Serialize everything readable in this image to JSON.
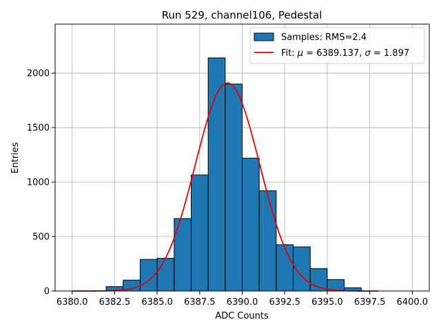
{
  "chart_data": {
    "type": "bar",
    "title": "Run 529, channel106, Pedestal",
    "xlabel": "ADC Counts",
    "ylabel": "Entries",
    "xlim": [
      6379.0,
      6401.0
    ],
    "ylim": [
      0,
      2450
    ],
    "xticks": [
      6380.0,
      6382.5,
      6385.0,
      6387.5,
      6390.0,
      6392.5,
      6395.0,
      6397.5,
      6400.0
    ],
    "xtick_labels": [
      "6380.0",
      "6382.5",
      "6385.0",
      "6387.5",
      "6390.0",
      "6392.5",
      "6395.0",
      "6397.5",
      "6400.0"
    ],
    "yticks": [
      0,
      500,
      1000,
      1500,
      2000
    ],
    "ytick_labels": [
      "0",
      "500",
      "1000",
      "1500",
      "2000"
    ],
    "grid": true,
    "legend_position": "top-right",
    "bar_color": "#1f77b4",
    "bar_edge_color": "#000000",
    "fit_color": "#e00000",
    "bins": [
      {
        "start": 6380,
        "end": 6381,
        "count": 0
      },
      {
        "start": 6381,
        "end": 6382,
        "count": 0
      },
      {
        "start": 6382,
        "end": 6383,
        "count": 40
      },
      {
        "start": 6383,
        "end": 6384,
        "count": 100
      },
      {
        "start": 6384,
        "end": 6385,
        "count": 290
      },
      {
        "start": 6385,
        "end": 6386,
        "count": 300
      },
      {
        "start": 6386,
        "end": 6387,
        "count": 665
      },
      {
        "start": 6387,
        "end": 6388,
        "count": 1065
      },
      {
        "start": 6388,
        "end": 6389,
        "count": 2140
      },
      {
        "start": 6389,
        "end": 6390,
        "count": 1900
      },
      {
        "start": 6390,
        "end": 6391,
        "count": 1220
      },
      {
        "start": 6391,
        "end": 6392,
        "count": 920
      },
      {
        "start": 6392,
        "end": 6393,
        "count": 425
      },
      {
        "start": 6393,
        "end": 6394,
        "count": 405
      },
      {
        "start": 6394,
        "end": 6395,
        "count": 205
      },
      {
        "start": 6395,
        "end": 6396,
        "count": 105
      },
      {
        "start": 6396,
        "end": 6397,
        "count": 30
      },
      {
        "start": 6397,
        "end": 6398,
        "count": 0
      },
      {
        "start": 6398,
        "end": 6399,
        "count": 0
      },
      {
        "start": 6399,
        "end": 6400,
        "count": 0
      }
    ],
    "fit": {
      "mu": 6389.137,
      "sigma": 1.897,
      "amplitude": 1910,
      "x_range": [
        6380,
        6398
      ]
    },
    "legend": {
      "samples_label": "Samples: RMS=2.4",
      "fit_label_prefix": "Fit: ",
      "fit_mu_symbol": "μ",
      "fit_mu_text": " = 6389.137, ",
      "fit_sigma_symbol": "σ",
      "fit_sigma_text": " = 1.897"
    }
  }
}
